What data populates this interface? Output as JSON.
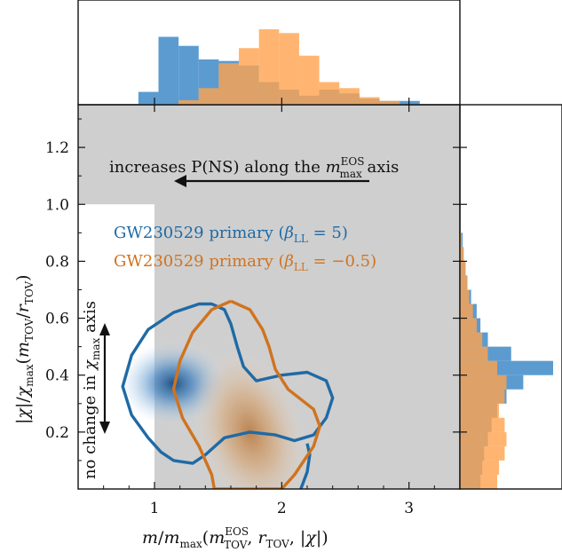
{
  "colors": {
    "blue": "#1f6aa5",
    "orange": "#d0731f",
    "blue_hist": "#5b9bd0",
    "orange_hist": "#ffa24d",
    "gray_region": "#cfcfcf"
  },
  "chart_data": {
    "type": "heatmap",
    "title": "",
    "xlabel": "m / m_max(m_TOV^EOS, r_TOV, |χ|)",
    "ylabel": "|χ| / χ_max(m_TOV / r_TOV)",
    "xlim": [
      0.4,
      3.4
    ],
    "ylim": [
      0.0,
      1.35
    ],
    "xticks": [
      "1",
      "2",
      "3"
    ],
    "yticks": [
      "0.2",
      "0.4",
      "0.6",
      "0.8",
      "1.0",
      "1.2"
    ],
    "legend_placement": "upper-left",
    "series": [
      {
        "name": "GW230529 primary (β_LL = 5)",
        "color": "#1f6aa5",
        "density_peak": {
          "x": 1.15,
          "y": 0.37
        },
        "contour": [
          [
            1.45,
            0.65
          ],
          [
            1.35,
            0.65
          ],
          [
            1.15,
            0.62
          ],
          [
            0.95,
            0.56
          ],
          [
            0.82,
            0.47
          ],
          [
            0.75,
            0.36
          ],
          [
            0.82,
            0.26
          ],
          [
            0.95,
            0.18
          ],
          [
            1.05,
            0.13
          ],
          [
            1.15,
            0.1
          ],
          [
            1.3,
            0.09
          ],
          [
            1.4,
            0.12
          ],
          [
            1.55,
            0.18
          ],
          [
            1.75,
            0.2
          ],
          [
            1.95,
            0.19
          ],
          [
            2.1,
            0.17
          ],
          [
            2.25,
            0.19
          ],
          [
            2.35,
            0.25
          ],
          [
            2.4,
            0.32
          ],
          [
            2.35,
            0.38
          ],
          [
            2.2,
            0.41
          ],
          [
            2.0,
            0.4
          ],
          [
            1.8,
            0.38
          ],
          [
            1.7,
            0.43
          ],
          [
            1.65,
            0.5
          ],
          [
            1.6,
            0.58
          ],
          [
            1.55,
            0.63
          ],
          [
            1.45,
            0.65
          ]
        ],
        "contour_tail": [
          [
            2.15,
            0.0
          ],
          [
            2.2,
            0.06
          ],
          [
            2.22,
            0.12
          ],
          [
            2.2,
            0.16
          ]
        ],
        "x_hist": [
          0,
          0,
          0,
          0.17,
          0.9,
          0.78,
          0.6,
          0.58,
          0.52,
          0.3,
          0.2,
          0.12,
          0.2,
          0.15,
          0.08,
          0.05,
          0.05,
          0,
          0
        ],
        "y_hist": [
          0.22,
          0.24,
          0.26,
          0.3,
          0.34,
          0.4,
          0.5,
          0.68,
          1.0,
          0.55,
          0.3,
          0.22,
          0.18,
          0.12,
          0.08,
          0.06,
          0.04,
          0.03
        ]
      },
      {
        "name": "GW230529 primary (β_LL = −0.5)",
        "color": "#d0731f",
        "density_peak": {
          "x": 1.75,
          "y": 0.2
        },
        "contour": [
          [
            1.6,
            0.66
          ],
          [
            1.45,
            0.63
          ],
          [
            1.3,
            0.55
          ],
          [
            1.2,
            0.45
          ],
          [
            1.15,
            0.35
          ],
          [
            1.22,
            0.25
          ],
          [
            1.35,
            0.15
          ],
          [
            1.45,
            0.05
          ],
          [
            1.47,
            0.0
          ],
          [
            2.0,
            0.0
          ],
          [
            2.1,
            0.05
          ],
          [
            2.25,
            0.15
          ],
          [
            2.3,
            0.22
          ],
          [
            2.25,
            0.28
          ],
          [
            2.05,
            0.35
          ],
          [
            1.95,
            0.42
          ],
          [
            1.9,
            0.5
          ],
          [
            1.85,
            0.56
          ],
          [
            1.75,
            0.63
          ],
          [
            1.6,
            0.66
          ]
        ],
        "x_hist": [
          0,
          0,
          0,
          0,
          0,
          0.06,
          0.22,
          0.55,
          0.75,
          1.0,
          0.95,
          0.65,
          0.3,
          0.22,
          0.1,
          0.05,
          0,
          0,
          0
        ],
        "y_hist": [
          0.4,
          0.42,
          0.48,
          0.5,
          0.48,
          0.42,
          0.48,
          0.5,
          0.4,
          0.3,
          0.24,
          0.18,
          0.14,
          0.1,
          0.08,
          0.06,
          0.04,
          0.02
        ]
      }
    ],
    "regions": {
      "gray_excluded": "m/m_max > 1 or |χ|/χ_max > 1"
    },
    "annotations": {
      "horizontal": {
        "prefix": "increases P(NS) along the ",
        "m": "m",
        "sup": "EOS",
        "sub": "max",
        "suffix": " axis"
      },
      "vertical": {
        "prefix": "no change in ",
        "chi": "χ",
        "sub": "max",
        "suffix": " axis"
      }
    },
    "legend": [
      {
        "base": "GW230529 primary (",
        "beta": "β",
        "sub": "LL",
        "value": " = 5)"
      },
      {
        "base": "GW230529 primary (",
        "beta": "β",
        "sub": "LL",
        "value": " = −0.5)"
      }
    ],
    "axis_label_parts": {
      "x": {
        "a": "m",
        "b": "/",
        "c": "m",
        "c_sub": "max",
        "d": "(",
        "e": "m",
        "e_sup": "EOS",
        "e_sub": "TOV",
        "f": ", ",
        "g": "r",
        "g_sub": "TOV",
        "h": ", |",
        "i": "χ",
        "j": "|)"
      },
      "y": {
        "a": "|",
        "b": "χ",
        "c": "|/",
        "d": "χ",
        "d_sub": "max",
        "e": "(",
        "f": "m",
        "f_sub": "TOV",
        "g": "/",
        "h": "r",
        "h_sub": "TOV",
        "i": ")"
      }
    }
  }
}
